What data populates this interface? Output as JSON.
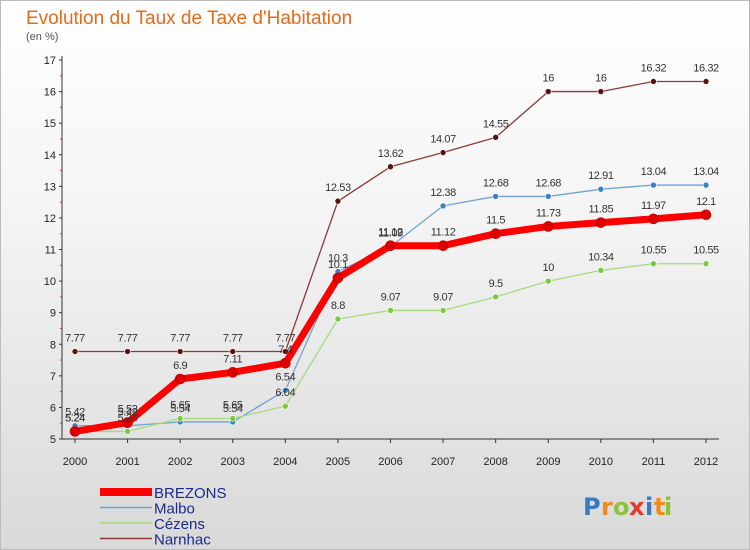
{
  "header": {
    "title": "Evolution du Taux de Taxe d'Habitation",
    "subtitle": "(en %)"
  },
  "logo": {
    "text": "Proxiti",
    "letters": [
      "P",
      "r",
      "o",
      "x",
      "i",
      "t",
      "i"
    ],
    "colors": [
      "#3b78c4",
      "#f08a1c",
      "#8cc23e",
      "#e23a2e",
      "#3b78c4",
      "#f08a1c",
      "#8cc23e"
    ]
  },
  "chart_data": {
    "type": "line",
    "title": "Evolution du Taux de Taxe d'Habitation",
    "ylabel": "(en %)",
    "x": [
      "2000",
      "2001",
      "2002",
      "2003",
      "2004",
      "2005",
      "2006",
      "2007",
      "2008",
      "2009",
      "2010",
      "2011",
      "2012"
    ],
    "ylim": [
      5,
      17
    ],
    "yticks": [
      5,
      6,
      7,
      8,
      9,
      10,
      11,
      12,
      13,
      14,
      15,
      16,
      17
    ],
    "legend_position": "bottom-left",
    "series": [
      {
        "name": "Narnhac",
        "color": "#8b3a3a",
        "marker": "#5a1010",
        "width": 1.3,
        "values": [
          7.77,
          7.77,
          7.77,
          7.77,
          7.77,
          12.53,
          13.62,
          14.07,
          14.55,
          16,
          16,
          16.32,
          16.32
        ],
        "labels": [
          "7.77",
          "7.77",
          "7.77",
          "7.77",
          "7.77",
          "12.53",
          "13.62",
          "14.07",
          "14.55",
          "16",
          "16",
          "16.32",
          "16.32"
        ]
      },
      {
        "name": "Malbo",
        "color": "#6fa3d6",
        "marker": "#3b7fc4",
        "width": 1.3,
        "values": [
          5.42,
          5.42,
          5.54,
          5.54,
          6.54,
          10.3,
          11.09,
          12.38,
          12.68,
          12.68,
          12.91,
          13.04,
          13.04
        ],
        "labels": [
          "5.42",
          "5.42",
          "5.54",
          "5.54",
          "6.54",
          "10.3",
          "11.09",
          "12.38",
          "12.68",
          "12.68",
          "12.91",
          "13.04",
          "13.04"
        ]
      },
      {
        "name": "Cézens",
        "color": "#a5db7c",
        "marker": "#7cc83e",
        "width": 1.3,
        "values": [
          5.24,
          5.24,
          5.65,
          5.65,
          6.04,
          8.8,
          9.07,
          9.07,
          9.5,
          10,
          10.34,
          10.55,
          10.55
        ],
        "labels": [
          "5.24",
          "5.24",
          "5.65",
          "5.65",
          "6.04",
          "8.8",
          "9.07",
          "9.07",
          "9.5",
          "10",
          "10.34",
          "10.55",
          "10.55"
        ]
      },
      {
        "name": "BREZONS",
        "color": "#ff0000",
        "marker": "#dd0000",
        "width": 7,
        "values": [
          5.24,
          5.52,
          6.9,
          7.11,
          7.4,
          10.1,
          11.12,
          11.12,
          11.5,
          11.73,
          11.85,
          11.97,
          12.1
        ],
        "labels": [
          "5.24",
          "5.52",
          "6.9",
          "7.11",
          "7.4",
          "10.1",
          "11.12",
          "11.12",
          "11.5",
          "11.73",
          "11.85",
          "11.97",
          "12.1"
        ]
      }
    ],
    "legend_order": [
      "BREZONS",
      "Malbo",
      "Cézens",
      "Narnhac"
    ]
  }
}
